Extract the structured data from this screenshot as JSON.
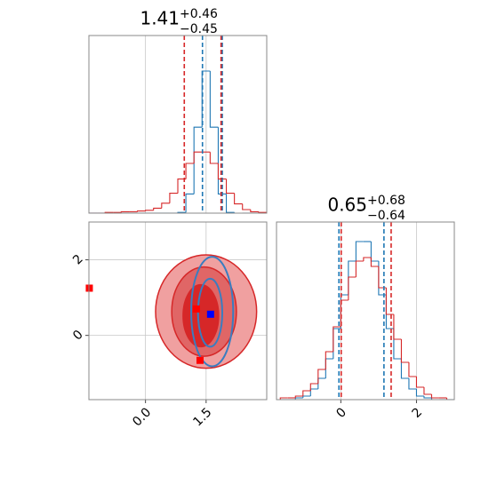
{
  "chart_data": [
    {
      "type": "histogram",
      "title": {
        "value": "1.41",
        "upper": "+0.46",
        "lower": "−0.45"
      },
      "bins": [
        -1.4,
        -1.2,
        -1.0,
        -0.8,
        -0.6,
        -0.4,
        -0.2,
        0.0,
        0.2,
        0.4,
        0.6,
        0.8,
        1.0,
        1.2,
        1.4,
        1.6,
        1.8,
        2.0,
        2.2,
        2.4,
        2.6,
        2.8,
        3.0
      ],
      "series": [
        {
          "color": "#1f77b4",
          "values": [
            0,
            0,
            0,
            0,
            0,
            0,
            0,
            0,
            0,
            0,
            0,
            0.01,
            0.27,
            1.21,
            2.0,
            1.21,
            0.27,
            0.01,
            0,
            0,
            0,
            0
          ]
        },
        {
          "color": "#d62728",
          "values": [
            0,
            0,
            0.01,
            0.01,
            0.02,
            0.02,
            0.03,
            0.04,
            0.07,
            0.14,
            0.28,
            0.48,
            0.7,
            0.86,
            0.86,
            0.7,
            0.48,
            0.28,
            0.13,
            0.05,
            0.02,
            0.01
          ]
        }
      ],
      "quantile_lines": [
        {
          "color": "#1f77b4",
          "values": [
            1.41,
            1.9
          ]
        },
        {
          "color": "#d62728",
          "values": [
            0.96,
            1.87
          ]
        }
      ],
      "xlim": [
        -1.4,
        3.0
      ],
      "ylim": [
        0,
        2.5
      ],
      "xticks": [
        0,
        1.5
      ],
      "xtick_labels": false,
      "grid": true
    },
    {
      "type": "contour",
      "contours": [
        {
          "color": "#f0a0a0",
          "edge": "#d62728",
          "filled": true,
          "center": [
            1.5,
            0.63
          ],
          "radii": [
            1.25,
            1.5
          ]
        },
        {
          "color": "#e06666",
          "edge": "#d62728",
          "filled": true,
          "center": [
            1.45,
            0.63
          ],
          "radii": [
            0.8,
            1.18
          ]
        },
        {
          "color": "#d62728",
          "edge": "#d62728",
          "filled": true,
          "center": [
            1.37,
            0.52
          ],
          "radii": [
            0.44,
            0.82
          ]
        },
        {
          "color": "#1f77b4",
          "edge": "#3a7dc0",
          "filled": false,
          "center": [
            1.65,
            0.63
          ],
          "radii": [
            0.52,
            1.45
          ]
        },
        {
          "color": "#1f77b4",
          "edge": "#3a7dc0",
          "filled": false,
          "center": [
            1.6,
            0.6
          ],
          "radii": [
            0.3,
            0.9
          ]
        }
      ],
      "points": [
        {
          "color": "#ff0000",
          "x": [
            1.26,
            1.35,
            -1.39
          ],
          "y": [
            0.7,
            -0.66,
            1.25
          ]
        },
        {
          "color": "#0000ff",
          "x": [
            1.61
          ],
          "y": [
            0.56
          ]
        }
      ],
      "xlim": [
        -1.4,
        3.0
      ],
      "ylim": [
        -1.7,
        3.0
      ],
      "xticks": [
        {
          "value": 0,
          "label": "0.0"
        },
        {
          "value": 1.5,
          "label": "1.5"
        }
      ],
      "xtick_labels": true,
      "yticks": [
        0,
        2
      ],
      "grid": true
    },
    {
      "type": "histogram",
      "title": {
        "value": "0.65",
        "upper": "+0.68",
        "lower": "−0.64"
      },
      "bins": [
        -1.6,
        -1.4,
        -1.2,
        -1.0,
        -0.8,
        -0.6,
        -0.4,
        -0.2,
        0.0,
        0.2,
        0.4,
        0.6,
        0.8,
        1.0,
        1.2,
        1.4,
        1.6,
        1.8,
        2.0,
        2.2,
        2.4,
        2.6,
        2.8,
        3.0
      ],
      "series": [
        {
          "color": "#1f77b4",
          "values": [
            0,
            0,
            0.01,
            0.02,
            0.06,
            0.12,
            0.23,
            0.4,
            0.59,
            0.78,
            0.89,
            0.89,
            0.78,
            0.59,
            0.4,
            0.23,
            0.12,
            0.06,
            0.02,
            0.01,
            0,
            0,
            0
          ]
        },
        {
          "color": "#d62728",
          "values": [
            0.01,
            0.01,
            0.02,
            0.05,
            0.09,
            0.17,
            0.27,
            0.41,
            0.56,
            0.69,
            0.78,
            0.8,
            0.75,
            0.63,
            0.48,
            0.34,
            0.21,
            0.13,
            0.07,
            0.03,
            0.01,
            0.01,
            0
          ]
        }
      ],
      "quantile_lines": [
        {
          "color": "#1f77b4",
          "values": [
            -0.05,
            1.14
          ]
        },
        {
          "color": "#d62728",
          "values": [
            0.01,
            1.33
          ]
        }
      ],
      "xlim": [
        -1.7,
        3.0
      ],
      "ylim": [
        0,
        1
      ],
      "xticks": [
        0,
        2
      ],
      "xtick_labels": true,
      "grid": true
    }
  ]
}
